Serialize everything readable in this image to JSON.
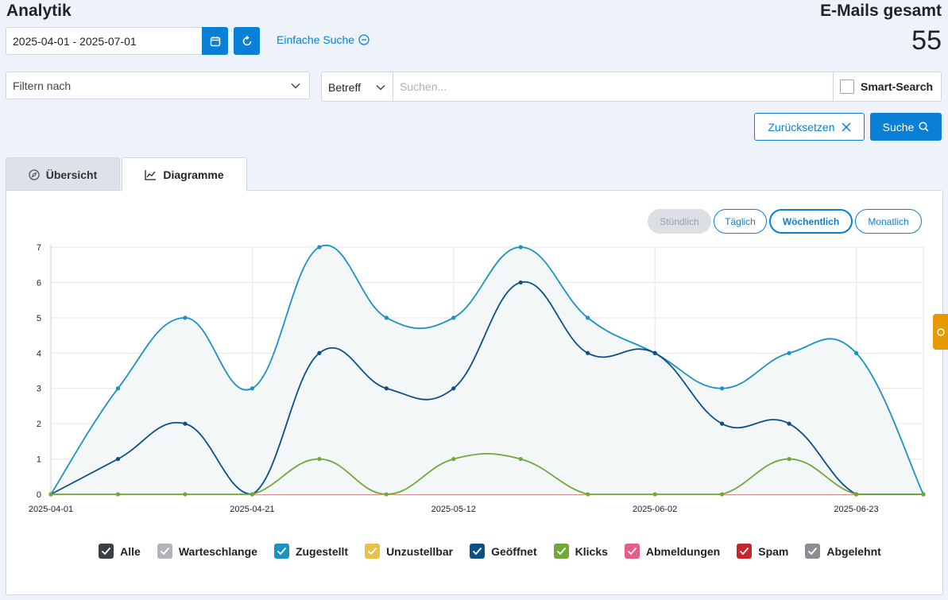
{
  "header": {
    "title": "Analytik",
    "total_label": "E-Mails gesamt",
    "total_value": "55"
  },
  "toolbar": {
    "date_range": "2025-04-01 - 2025-07-01",
    "simple_search_label": "Einfache Suche"
  },
  "filters": {
    "filter_placeholder": "Filtern nach",
    "field_selected": "Betreff",
    "search_placeholder": "Suchen...",
    "smart_search_label": "Smart-Search",
    "reset_label": "Zurücksetzen",
    "search_label": "Suche"
  },
  "tabs": [
    {
      "label": "Übersicht",
      "icon": "compass-icon",
      "active": false
    },
    {
      "label": "Diagramme",
      "icon": "chart-line-icon",
      "active": true
    }
  ],
  "period_buttons": [
    {
      "label": "Stündlich",
      "state": "disabled"
    },
    {
      "label": "Täglich",
      "state": "normal"
    },
    {
      "label": "Wöchentlich",
      "state": "active"
    },
    {
      "label": "Monatlich",
      "state": "normal"
    }
  ],
  "colors": {
    "accent": "#0a7fd6",
    "zugestellt": "#1a93c2",
    "geoeffnet": "#0d4f86",
    "klicks": "#72a83a",
    "side_tab": "#e79a00"
  },
  "chart_data": {
    "type": "line",
    "x": [
      "2025-04-01",
      "2025-04-08",
      "2025-04-15",
      "2025-04-21",
      "2025-04-28",
      "2025-05-05",
      "2025-05-12",
      "2025-05-19",
      "2025-05-26",
      "2025-06-02",
      "2025-06-09",
      "2025-06-16",
      "2025-06-23",
      "2025-06-30"
    ],
    "x_tick_labels": [
      "2025-04-01",
      "2025-04-21",
      "2025-05-12",
      "2025-06-02",
      "2025-06-23"
    ],
    "y_tick_labels": [
      "0",
      "1",
      "2",
      "3",
      "4",
      "5",
      "6",
      "7"
    ],
    "ylim": [
      0,
      7
    ],
    "grid": true,
    "series": [
      {
        "name": "Zugestellt",
        "values": [
          0,
          3,
          5,
          3,
          7,
          5,
          5,
          7,
          5,
          4,
          3,
          4,
          4,
          0
        ],
        "fill": true
      },
      {
        "name": "Geöffnet",
        "values": [
          0,
          1,
          2,
          0,
          4,
          3,
          3,
          6,
          4,
          4,
          2,
          2,
          0,
          0
        ]
      },
      {
        "name": "Klicks",
        "values": [
          0,
          0,
          0,
          0,
          1,
          0,
          1,
          1,
          0,
          0,
          0,
          1,
          0,
          0
        ]
      }
    ],
    "legend": [
      {
        "name": "Alle",
        "color": "#3c3f44"
      },
      {
        "name": "Warteschlange",
        "color": "#b1b5ba"
      },
      {
        "name": "Zugestellt",
        "color": "#1a93c2"
      },
      {
        "name": "Unzustellbar",
        "color": "#e9c04a"
      },
      {
        "name": "Geöffnet",
        "color": "#0d4f86"
      },
      {
        "name": "Klicks",
        "color": "#72a83a"
      },
      {
        "name": "Abmeldungen",
        "color": "#e85c8a"
      },
      {
        "name": "Spam",
        "color": "#c8242b"
      },
      {
        "name": "Abgelehnt",
        "color": "#8a8d91"
      }
    ],
    "legend_position": "bottom"
  }
}
